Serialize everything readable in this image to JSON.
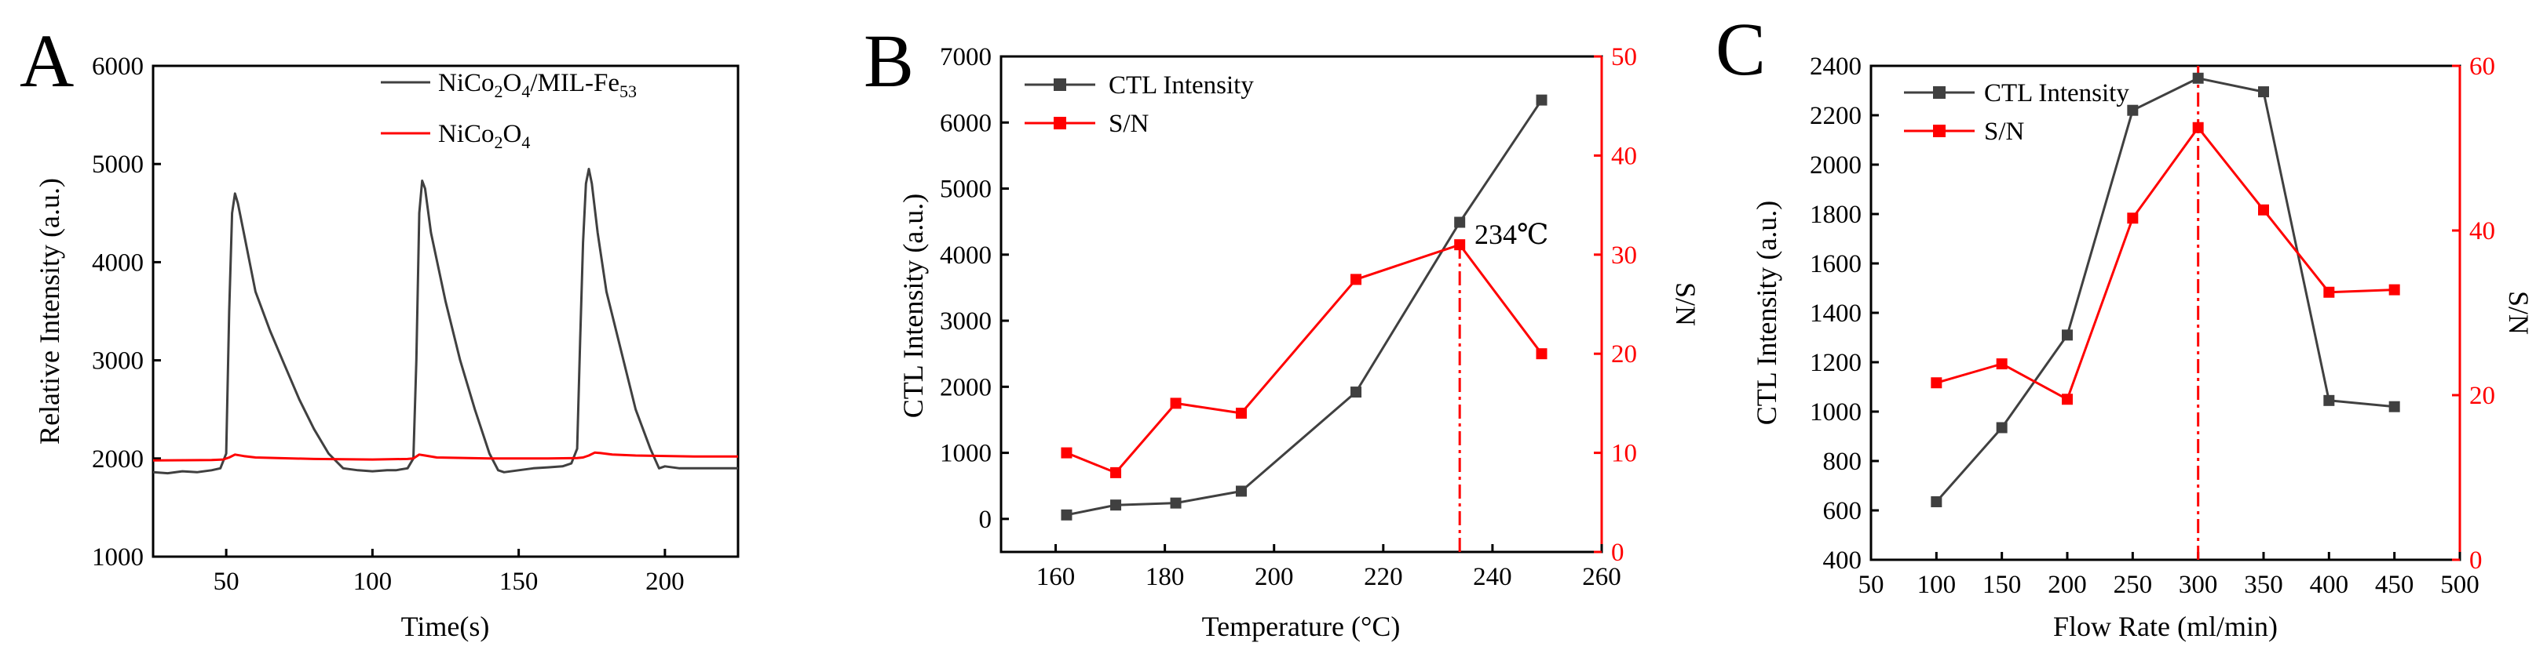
{
  "figure": {
    "colors": {
      "black": "#000000",
      "dark": "#404040",
      "red": "#ff0000"
    }
  },
  "chart_data": [
    {
      "type": "line",
      "panel": "A",
      "xlabel": "Time(s)",
      "ylabel": "Relative Intensity (a.u.)",
      "xlim": [
        25,
        225
      ],
      "ylim": [
        1000,
        6000
      ],
      "xticks": [
        50,
        100,
        150,
        200
      ],
      "yticks": [
        1000,
        2000,
        3000,
        4000,
        5000,
        6000
      ],
      "legend": [
        {
          "base": "NiCo",
          "s1": "2",
          "mid": "O",
          "s2": "4",
          "tail": "/MIL-Fe",
          "s3": "53",
          "color": "#404040"
        },
        {
          "base": "NiCo",
          "s1": "2",
          "mid": "O",
          "s2": "4",
          "tail": "",
          "s3": "",
          "color": "#ff0000"
        }
      ],
      "series": [
        {
          "name": "NiCo2O4/MIL-Fe53",
          "color": "#404040",
          "x": [
            25,
            30,
            35,
            40,
            45,
            48,
            50,
            51,
            52,
            53,
            54,
            56,
            60,
            65,
            70,
            75,
            80,
            85,
            90,
            95,
            100,
            105,
            108,
            112,
            114,
            115,
            116,
            117,
            118,
            120,
            125,
            130,
            135,
            140,
            143,
            145,
            150,
            155,
            160,
            165,
            168,
            170,
            171,
            172,
            173,
            174,
            175,
            177,
            180,
            185,
            190,
            195,
            198,
            200,
            205,
            210,
            215,
            220,
            225
          ],
          "y": [
            1860,
            1850,
            1870,
            1860,
            1880,
            1900,
            2050,
            3500,
            4500,
            4700,
            4600,
            4300,
            3700,
            3300,
            2950,
            2600,
            2300,
            2050,
            1900,
            1880,
            1870,
            1880,
            1880,
            1900,
            2000,
            3000,
            4500,
            4830,
            4750,
            4300,
            3600,
            3000,
            2500,
            2050,
            1880,
            1860,
            1880,
            1900,
            1910,
            1920,
            1950,
            2100,
            3200,
            4200,
            4800,
            4950,
            4800,
            4300,
            3700,
            3100,
            2500,
            2100,
            1900,
            1920,
            1900,
            1900,
            1900,
            1900,
            1900
          ]
        },
        {
          "name": "NiCo2O4",
          "color": "#ff0000",
          "x": [
            25,
            45,
            49,
            51,
            53,
            56,
            60,
            80,
            100,
            112,
            114,
            116,
            118,
            122,
            140,
            160,
            170,
            172,
            174,
            176,
            178,
            182,
            190,
            210,
            225
          ],
          "y": [
            1980,
            1985,
            1990,
            2010,
            2040,
            2025,
            2010,
            1995,
            1990,
            1995,
            2000,
            2040,
            2030,
            2010,
            2000,
            2000,
            2005,
            2010,
            2030,
            2060,
            2055,
            2040,
            2030,
            2020,
            2020
          ]
        }
      ]
    },
    {
      "type": "line",
      "panel": "B",
      "xlabel": "Temperature (°C)",
      "ylabel": "CTL Intensity (a.u.)",
      "y2label": "S/N",
      "xlim": [
        150,
        260
      ],
      "ylim": [
        -500,
        7000
      ],
      "y2lim": [
        0,
        50
      ],
      "xticks": [
        160,
        180,
        200,
        220,
        240,
        260
      ],
      "yticks": [
        0,
        1000,
        2000,
        3000,
        4000,
        5000,
        6000,
        7000
      ],
      "y2ticks": [
        0,
        10,
        20,
        30,
        40,
        50
      ],
      "annotation": {
        "text": "234℃",
        "x": 234
      },
      "legend": [
        "CTL Intensity",
        "S/N"
      ],
      "series": [
        {
          "name": "CTL Intensity",
          "color": "#404040",
          "axis": "left",
          "x": [
            162,
            171,
            182,
            194,
            215,
            234,
            249
          ],
          "y": [
            60,
            210,
            240,
            420,
            1920,
            4490,
            6340
          ]
        },
        {
          "name": "S/N",
          "color": "#ff0000",
          "axis": "right",
          "x": [
            162,
            171,
            182,
            194,
            215,
            234,
            249
          ],
          "y": [
            10,
            8,
            15,
            14,
            27.5,
            31,
            20
          ]
        }
      ]
    },
    {
      "type": "line",
      "panel": "C",
      "xlabel": "Flow Rate (ml/min)",
      "ylabel": "CTL Intensity (a.u.)",
      "y2label": "S/N",
      "xlim": [
        50,
        500
      ],
      "ylim": [
        400,
        2400
      ],
      "y2lim": [
        0,
        60
      ],
      "xticks": [
        50,
        100,
        150,
        200,
        250,
        300,
        350,
        400,
        450,
        500
      ],
      "yticks": [
        400,
        600,
        800,
        1000,
        1200,
        1400,
        1600,
        1800,
        2000,
        2200,
        2400
      ],
      "y2ticks": [
        0,
        20,
        40,
        60
      ],
      "vline_x": 300,
      "legend": [
        "CTL Intensity",
        "S/N"
      ],
      "series": [
        {
          "name": "CTL Intensity",
          "color": "#404040",
          "axis": "left",
          "x": [
            100,
            150,
            200,
            250,
            300,
            350,
            400,
            450
          ],
          "y": [
            635,
            935,
            1310,
            2220,
            2350,
            2295,
            1045,
            1020
          ]
        },
        {
          "name": "S/N",
          "color": "#ff0000",
          "axis": "right",
          "x": [
            100,
            150,
            200,
            250,
            300,
            350,
            400,
            450
          ],
          "y": [
            21.5,
            23.8,
            19.5,
            41.5,
            52.5,
            42.5,
            32.5,
            32.8
          ]
        }
      ]
    }
  ],
  "panel_labels": [
    "A",
    "B",
    "C"
  ]
}
